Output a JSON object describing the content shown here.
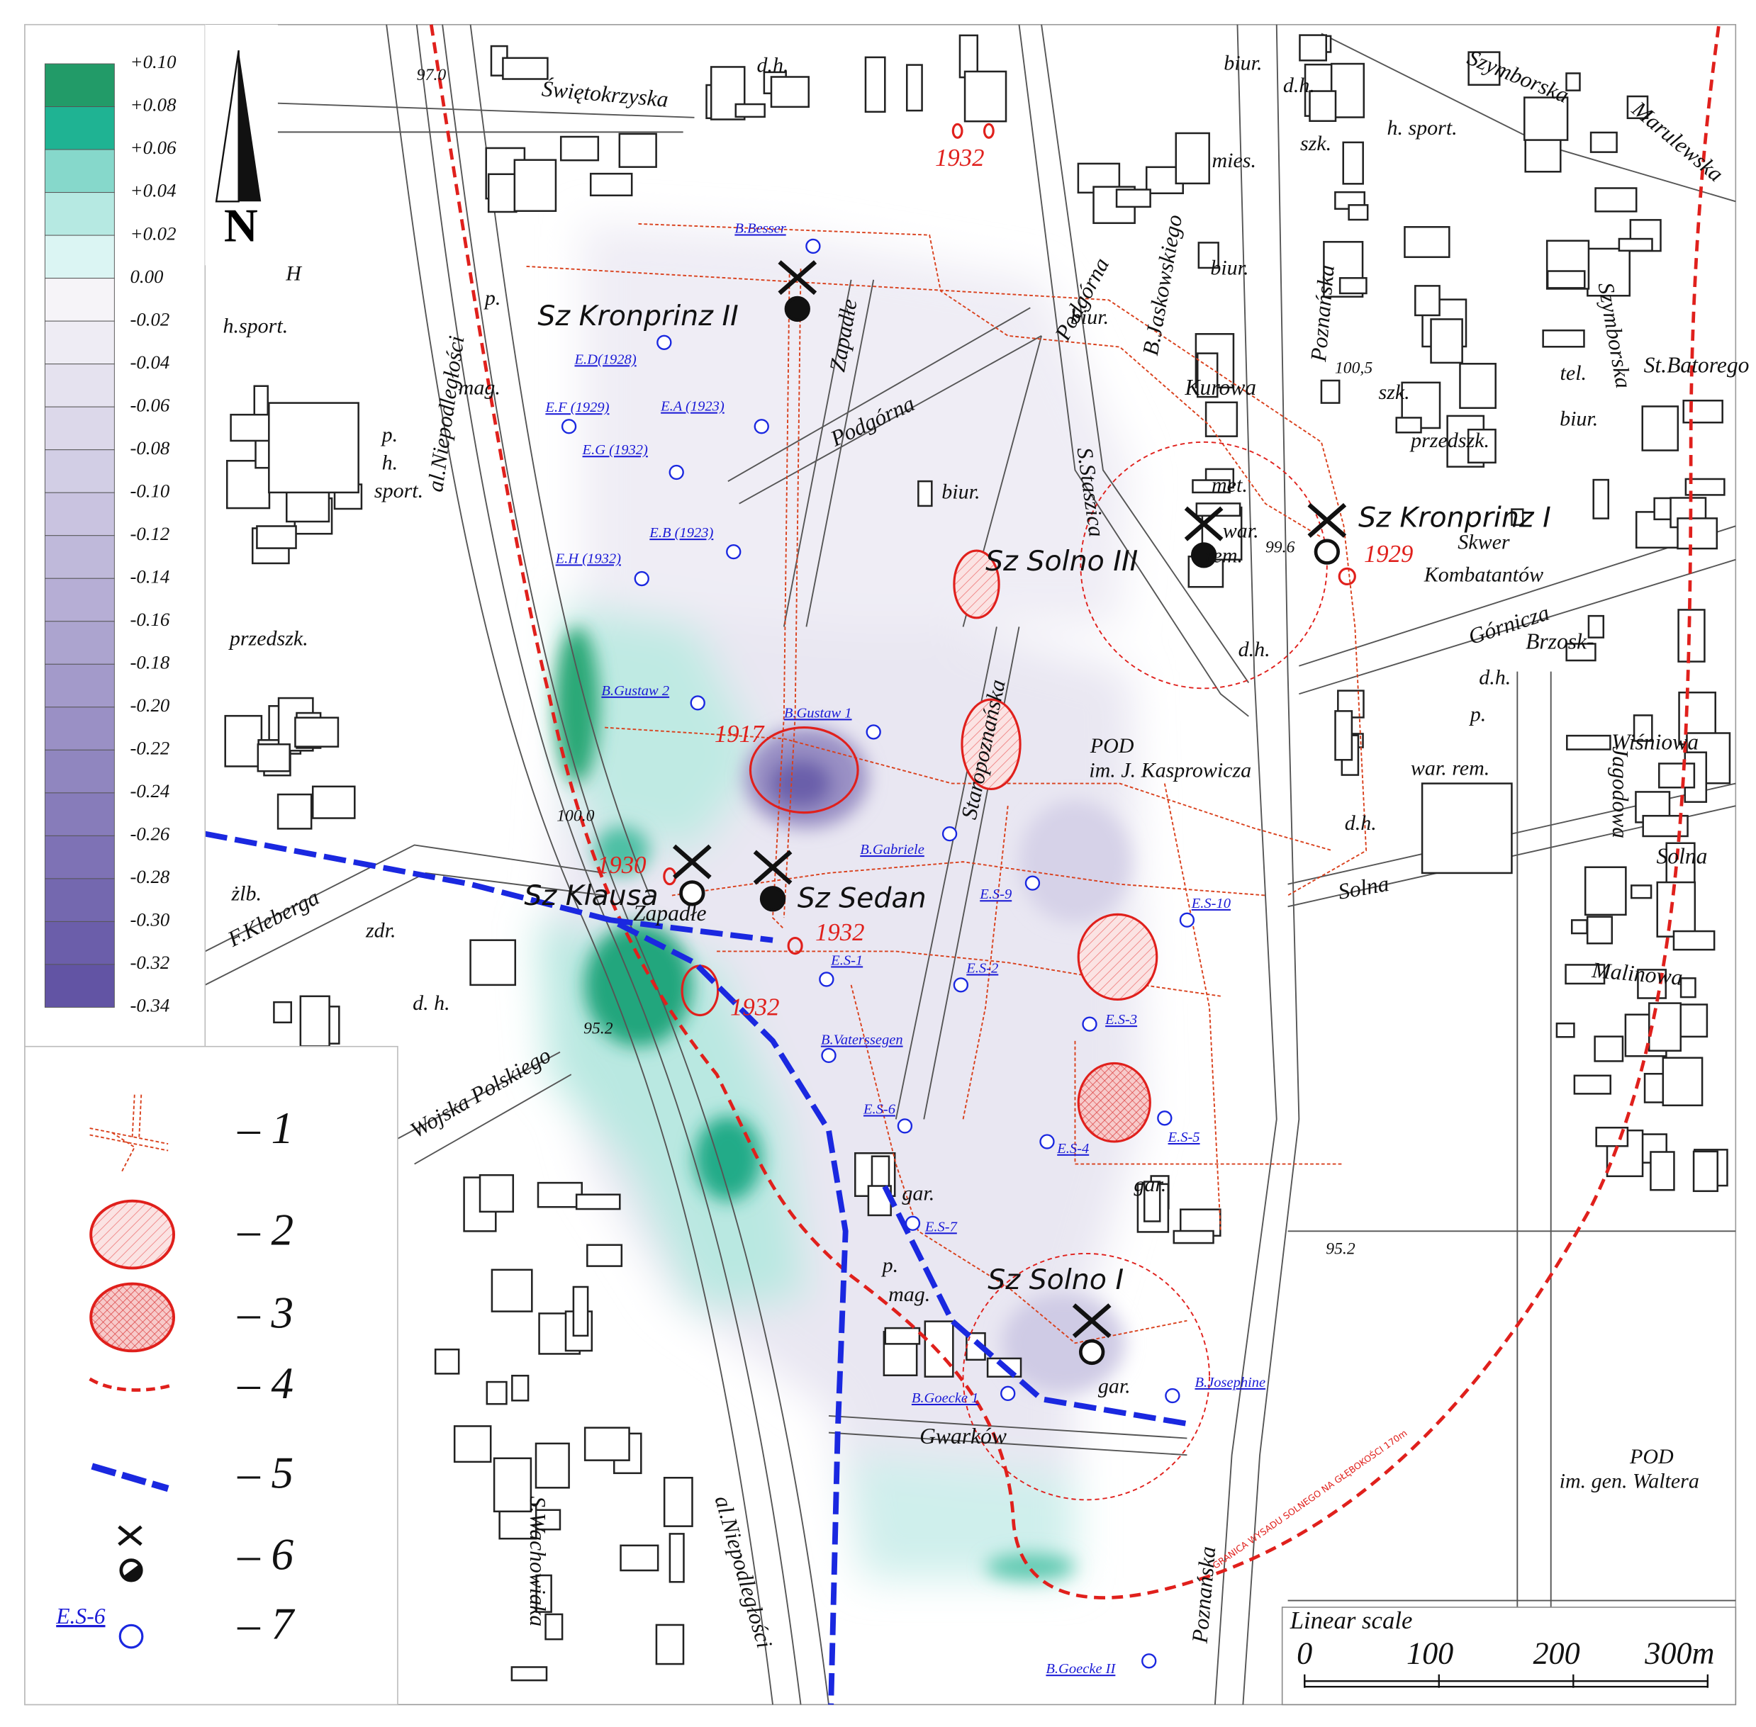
{
  "color_scale": {
    "labels": [
      "+0.10",
      "+0.08",
      "+0.06",
      "+0.04",
      "+0.02",
      "0.00",
      "-0.02",
      "-0.04",
      "-0.06",
      "-0.08",
      "-0.10",
      "-0.12",
      "-0.14",
      "-0.16",
      "-0.18",
      "-0.20",
      "-0.22",
      "-0.24",
      "-0.26",
      "-0.28",
      "-0.30",
      "-0.32",
      "-0.34"
    ],
    "colors": [
      "#229b68",
      "#1fb393",
      "#86d8cb",
      "#b6e9e2",
      "#dbf5f3",
      "#f6f4f8",
      "#eeecf4",
      "#e5e2ef",
      "#dcd8ea",
      "#d2cee5",
      "#c9c3e0",
      "#bfb9da",
      "#b6aed5",
      "#aca4cf",
      "#a39aca",
      "#9a90c5",
      "#9086bf",
      "#877cba",
      "#7e72b5",
      "#7468af",
      "#6b5eaa",
      "#6254a4"
    ]
  },
  "north": "N",
  "legend": {
    "items": [
      "– 1",
      "– 2",
      "– 3",
      "– 4",
      "– 5",
      "– 6",
      "– 7"
    ],
    "borehole_example": "E.S-6"
  },
  "scale_bar": {
    "title": "Linear scale",
    "ticks": [
      "0",
      "100",
      "200",
      "300m"
    ]
  },
  "shafts": [
    "Sz Kronprinz II",
    "Sz Kronprinz I",
    "Sz Solno III",
    "Sz Klausa",
    "Sz Sedan",
    "Sz Solno I"
  ],
  "years": [
    "1932",
    "1917",
    "1930",
    "1932",
    "1932",
    "1929"
  ],
  "boreholes": [
    "B.Besser",
    "E.D(1928)",
    "E.F (1929)",
    "E.A (1923)",
    "E.G (1932)",
    "E.B (1923)",
    "E.H (1932)",
    "B.Gustaw 2",
    "B.Gustaw 1",
    "B.Gabriele",
    "E.S-9",
    "E.S-10",
    "E.S-1",
    "E.S-2",
    "E.S-3",
    "B.Vaterssegen",
    "E.S-6",
    "E.S-4",
    "E.S-5",
    "E.S-7",
    "B.Goecke 1",
    "B.Josephine",
    "B.Goecke II"
  ],
  "streets": [
    "Świętokrzyska",
    "al.Niepodległości",
    "Podgórna",
    "Zapadłe",
    "Podgórna",
    "B.Jaskowskiego",
    "Poznańska",
    "Kurowa",
    "S.Staszica",
    "Szymborska",
    "Marulewska",
    "Szymborska",
    "Górnicza",
    "Brzosk-",
    "Wiśniowa",
    "Jagodowa",
    "Solna",
    "Malinowa",
    "Solna",
    "Staropoznańska",
    "F.Kleberga",
    "Wojska Polskiego",
    "Zapadłe",
    "Gwarków",
    "al.Niepodległości",
    "S.Wachowiaka",
    "Poznańska",
    "St.Batorego"
  ],
  "labels": [
    "d.h.",
    "biur.",
    "d.h.",
    "szk.",
    "h. sport.",
    "mies.",
    "biur.",
    "biur.",
    "szk.",
    "tel.",
    "biur.",
    "przedszk.",
    "met.",
    "biur.",
    "war.",
    "rem.",
    "Skwer",
    "Kombatantów",
    "d.h.",
    "d.h.",
    "p.",
    "POD",
    "im. J. Kasprowicza",
    "war. rem.",
    "d.h.",
    "p.",
    "H",
    "h.sport.",
    "mag.",
    "p.",
    "h.",
    "sport.",
    "przedszk.",
    "żlb.",
    "zdr.",
    "d. h.",
    "gar.",
    "gar.",
    "p.",
    "mag.",
    "gar.",
    "POD",
    "im. gen. Waltera"
  ],
  "elevations": [
    "97.0",
    "100.0",
    "95.2",
    "99.6",
    "100,5",
    "95.2"
  ],
  "boundary_note": "GRANICA WYSADU SOLNEGO  NA GŁĘBOKOŚCI 170m"
}
